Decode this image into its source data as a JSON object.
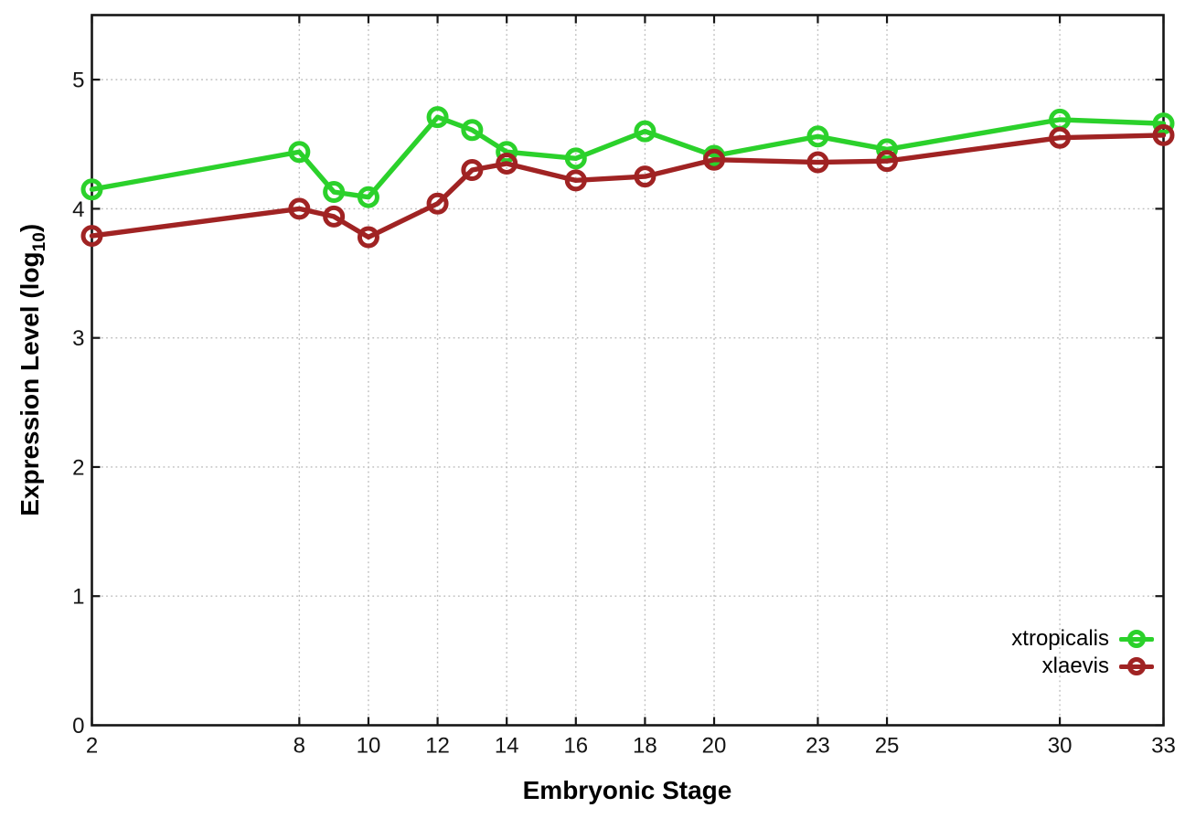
{
  "chart_data": {
    "type": "line",
    "title": "",
    "xlabel": "Embryonic Stage",
    "ylabel": "Expression Level (log10)",
    "ylabel_prefix": "Expression Level (log",
    "ylabel_sub": "10",
    "ylabel_suffix": ")",
    "x": [
      2,
      8,
      9,
      10,
      12,
      13,
      14,
      16,
      18,
      20,
      23,
      25,
      30,
      33
    ],
    "x_ticks": [
      2,
      8,
      10,
      12,
      14,
      16,
      18,
      20,
      23,
      25,
      30,
      33
    ],
    "y_ticks": [
      0,
      1,
      2,
      3,
      4,
      5
    ],
    "xlim": [
      2,
      33
    ],
    "ylim": [
      0,
      5.5
    ],
    "grid": true,
    "grid_style": "dotted",
    "legend_position": "inside-right-bottom",
    "marker": "open-circle",
    "series": [
      {
        "name": "xtropicalis",
        "color": "#2bd12b",
        "values": [
          4.15,
          4.44,
          4.13,
          4.09,
          4.71,
          4.61,
          4.44,
          4.39,
          4.6,
          4.41,
          4.56,
          4.46,
          4.69,
          4.66
        ]
      },
      {
        "name": "xlaevis",
        "color": "#a02323",
        "values": [
          3.79,
          4.0,
          3.94,
          3.78,
          4.04,
          4.3,
          4.35,
          4.22,
          4.25,
          4.38,
          4.36,
          4.37,
          4.55,
          4.57
        ]
      }
    ],
    "colors": {
      "background": "#ffffff",
      "border": "#161616",
      "grid": "#bdbdbd",
      "tick_text": "#141414"
    }
  }
}
